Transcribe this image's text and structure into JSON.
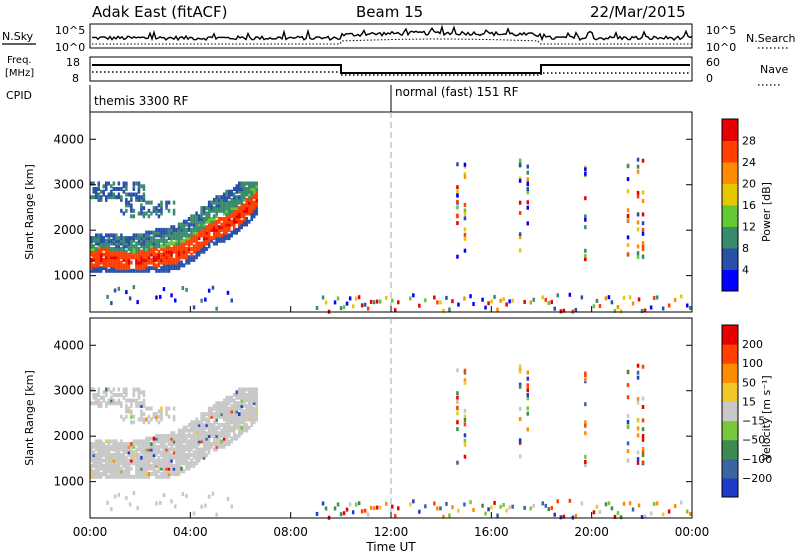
{
  "header": {
    "title": "Adak East (fitACF)",
    "beam": "Beam 15",
    "date": "22/Mar/2015"
  },
  "panels": {
    "nsky_label": "N.Sky",
    "nsky_ticks": [
      "10^5",
      "10^0"
    ],
    "nsearch_label": "N.Search",
    "nsearch_ticks": [
      "10^5",
      "10^0"
    ],
    "freq_label_line1": "Freq.",
    "freq_label_line2": "[MHz]",
    "freq_ticks": [
      "18",
      "8"
    ],
    "nave_label": "Nave",
    "nave_ticks": [
      "60",
      "0"
    ],
    "cpid_label": "CPID",
    "cpid_segments": [
      "themis 3300 RF",
      "normal (fast) 151 RF"
    ]
  },
  "chart_data": [
    {
      "type": "heatmap",
      "name": "power",
      "ylabel": "Slant Range [km]",
      "yticks": [
        1000,
        2000,
        3000,
        4000
      ],
      "ylim": [
        200,
        4600
      ],
      "xlim_hours": [
        0,
        24
      ],
      "colorbar_label": "Power [dB]",
      "colorbar_ticks": [
        "4",
        "8",
        "12",
        "16",
        "20",
        "24",
        "28"
      ],
      "colorbar_colors": [
        "#0000ff",
        "#2850a8",
        "#3a8a6e",
        "#64c832",
        "#e6c800",
        "#ff8c00",
        "#ff4000",
        "#e60000"
      ],
      "echo_bands": [
        {
          "t_start": 0.0,
          "t_end": 6.6,
          "range_start": 1300,
          "range_end": 2800,
          "description": "main ionospheric band"
        }
      ]
    },
    {
      "type": "heatmap",
      "name": "velocity",
      "ylabel": "Slant Range [km]",
      "yticks": [
        1000,
        2000,
        3000,
        4000
      ],
      "ylim": [
        200,
        4600
      ],
      "xlim_hours": [
        0,
        24
      ],
      "colorbar_label": "Velocity [m s⁻¹]",
      "colorbar_ticks": [
        "200",
        "100",
        "50",
        "15",
        "−15",
        "−50",
        "−100",
        "−200"
      ],
      "colorbar_colors": [
        "#1e3cc8",
        "#3c64a0",
        "#3c8c50",
        "#78c83c",
        "#c8c8c8",
        "#f0c828",
        "#ff8c00",
        "#ff4000",
        "#e60000"
      ]
    }
  ],
  "xaxis": {
    "ticks": [
      "00:00",
      "04:00",
      "08:00",
      "12:00",
      "16:00",
      "20:00",
      "00:00"
    ],
    "label": "Time UT"
  }
}
